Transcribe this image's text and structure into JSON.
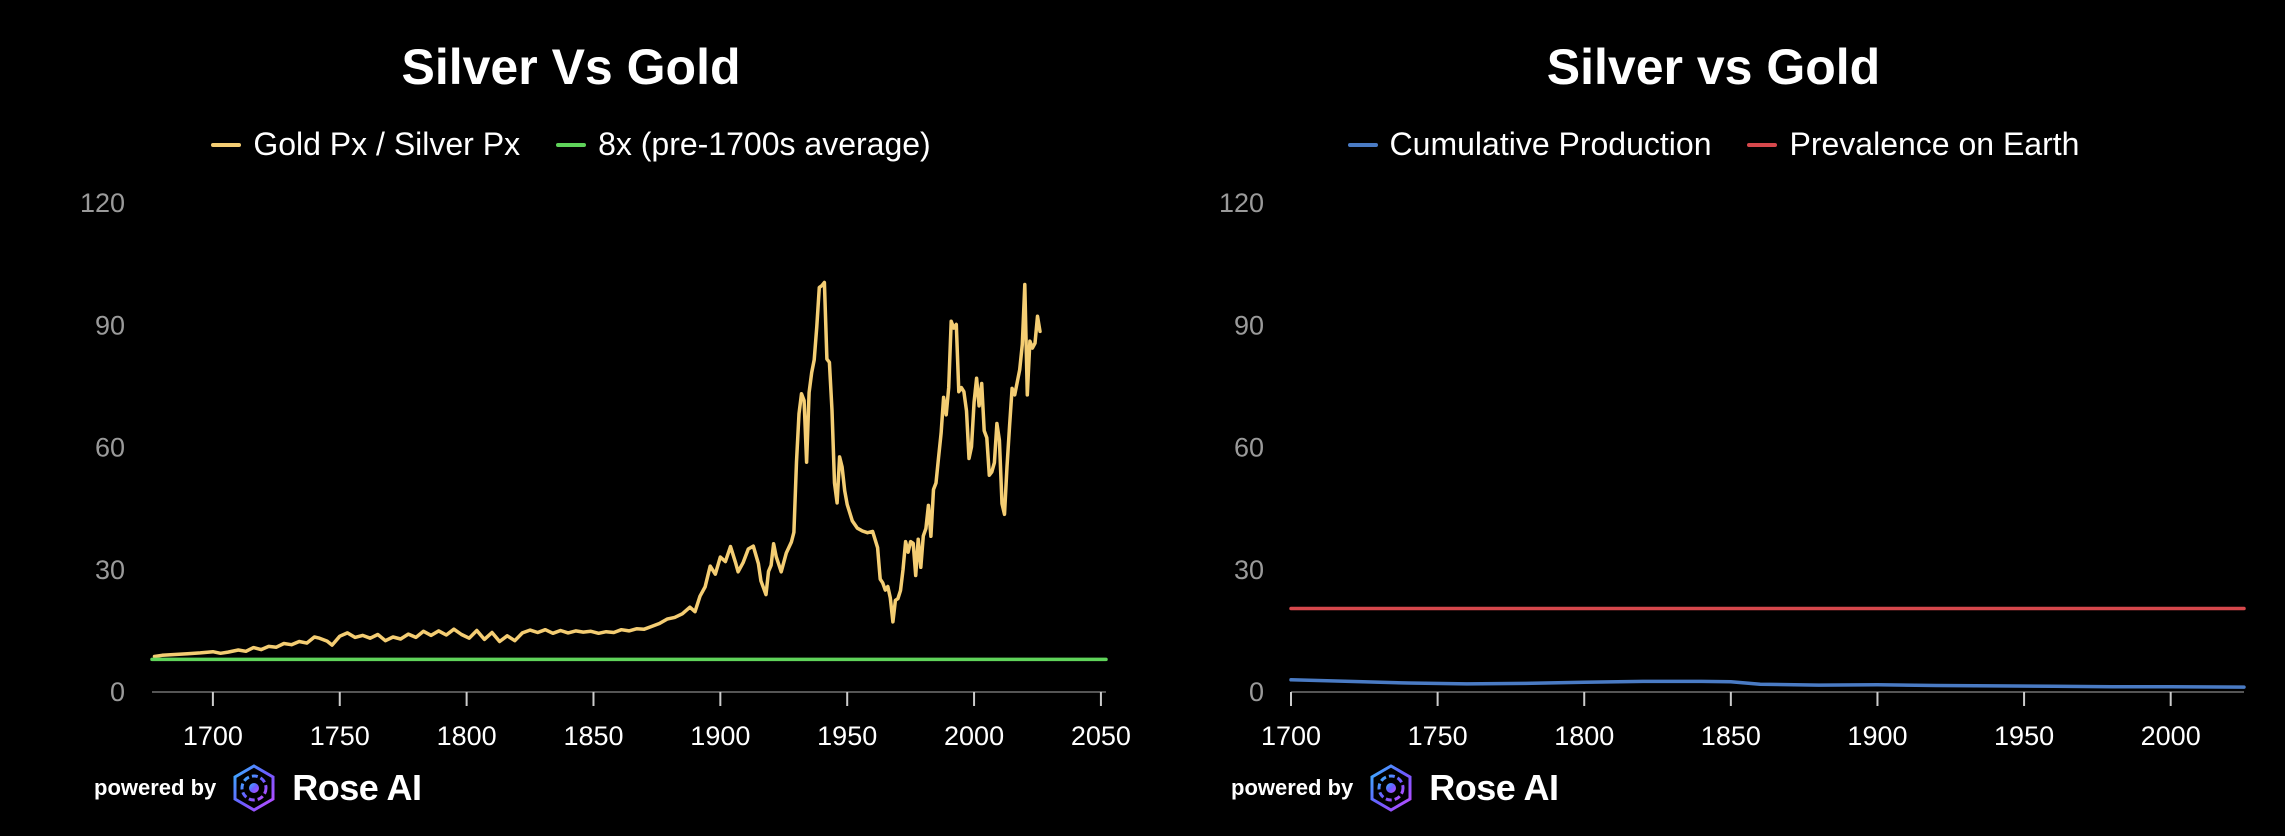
{
  "colors": {
    "background": "#000000",
    "gold": "#f4cd73",
    "green": "#5fd35a",
    "blue": "#4a7bc4",
    "red": "#d6484c",
    "axis_text": "#9a9a9a",
    "x_text": "#ffffff"
  },
  "branding": {
    "powered_by": "powered by",
    "brand": "Rose AI"
  },
  "chart_data": [
    {
      "type": "line",
      "title": "Silver Vs Gold",
      "xlim": [
        1676,
        2052
      ],
      "ylim": [
        0,
        120
      ],
      "x_ticks": [
        1700,
        1750,
        1800,
        1850,
        1900,
        1950,
        2000,
        2050
      ],
      "y_ticks": [
        0,
        30,
        60,
        90,
        120
      ],
      "legend_position": "top-center",
      "grid": false,
      "series": [
        {
          "name": "Gold Px / Silver Px",
          "color": "#f4cd73",
          "points": [
            [
              1677,
              8.7
            ],
            [
              1680,
              9.0
            ],
            [
              1685,
              9.2
            ],
            [
              1690,
              9.4
            ],
            [
              1695,
              9.6
            ],
            [
              1700,
              9.9
            ],
            [
              1703,
              9.5
            ],
            [
              1706,
              9.8
            ],
            [
              1710,
              10.3
            ],
            [
              1713,
              10.0
            ],
            [
              1716,
              10.9
            ],
            [
              1719,
              10.4
            ],
            [
              1722,
              11.2
            ],
            [
              1725,
              11.0
            ],
            [
              1728,
              11.9
            ],
            [
              1731,
              11.6
            ],
            [
              1734,
              12.4
            ],
            [
              1737,
              12.0
            ],
            [
              1740,
              13.5
            ],
            [
              1742,
              13.2
            ],
            [
              1745,
              12.5
            ],
            [
              1747,
              11.5
            ],
            [
              1750,
              13.7
            ],
            [
              1753,
              14.5
            ],
            [
              1756,
              13.4
            ],
            [
              1759,
              13.9
            ],
            [
              1762,
              13.2
            ],
            [
              1765,
              14.1
            ],
            [
              1768,
              12.6
            ],
            [
              1771,
              13.5
            ],
            [
              1774,
              13.0
            ],
            [
              1777,
              14.2
            ],
            [
              1780,
              13.4
            ],
            [
              1783,
              14.9
            ],
            [
              1786,
              13.9
            ],
            [
              1789,
              15.0
            ],
            [
              1792,
              14.0
            ],
            [
              1795,
              15.4
            ],
            [
              1798,
              14.1
            ],
            [
              1801,
              13.2
            ],
            [
              1804,
              15.1
            ],
            [
              1807,
              12.9
            ],
            [
              1810,
              14.6
            ],
            [
              1813,
              12.4
            ],
            [
              1816,
              13.8
            ],
            [
              1819,
              12.6
            ],
            [
              1822,
              14.5
            ],
            [
              1825,
              15.2
            ],
            [
              1828,
              14.6
            ],
            [
              1831,
              15.3
            ],
            [
              1834,
              14.4
            ],
            [
              1837,
              15.1
            ],
            [
              1840,
              14.5
            ],
            [
              1843,
              15.0
            ],
            [
              1846,
              14.7
            ],
            [
              1849,
              14.9
            ],
            [
              1852,
              14.4
            ],
            [
              1855,
              14.8
            ],
            [
              1858,
              14.6
            ],
            [
              1861,
              15.3
            ],
            [
              1864,
              15.0
            ],
            [
              1867,
              15.5
            ],
            [
              1870,
              15.4
            ],
            [
              1873,
              16.1
            ],
            [
              1876,
              16.8
            ],
            [
              1879,
              17.9
            ],
            [
              1882,
              18.3
            ],
            [
              1885,
              19.2
            ],
            [
              1888,
              20.8
            ],
            [
              1890,
              19.7
            ],
            [
              1892,
              23.5
            ],
            [
              1894,
              25.8
            ],
            [
              1896,
              30.9
            ],
            [
              1898,
              28.9
            ],
            [
              1900,
              33.1
            ],
            [
              1902,
              32.0
            ],
            [
              1904,
              35.7
            ],
            [
              1906,
              31.7
            ],
            [
              1907,
              29.5
            ],
            [
              1909,
              31.8
            ],
            [
              1911,
              35.1
            ],
            [
              1913,
              35.8
            ],
            [
              1915,
              31.5
            ],
            [
              1916,
              27.3
            ],
            [
              1918,
              23.9
            ],
            [
              1919,
              29.6
            ],
            [
              1920,
              31.1
            ],
            [
              1921,
              36.4
            ],
            [
              1922,
              33.2
            ],
            [
              1924,
              29.5
            ],
            [
              1926,
              34.1
            ],
            [
              1928,
              36.8
            ],
            [
              1929,
              39.2
            ],
            [
              1930,
              56.5
            ],
            [
              1931,
              68.3
            ],
            [
              1932,
              73.2
            ],
            [
              1933,
              71.5
            ],
            [
              1934,
              56.4
            ],
            [
              1935,
              73.5
            ],
            [
              1936,
              78.4
            ],
            [
              1937,
              81.5
            ],
            [
              1938,
              89.7
            ],
            [
              1939,
              99.3
            ],
            [
              1940,
              99.7
            ],
            [
              1941,
              100.5
            ],
            [
              1942,
              81.7
            ],
            [
              1943,
              80.9
            ],
            [
              1944,
              69.1
            ],
            [
              1945,
              51.3
            ],
            [
              1946,
              46.4
            ],
            [
              1947,
              57.7
            ],
            [
              1948,
              55.2
            ],
            [
              1949,
              49.4
            ],
            [
              1950,
              46.0
            ],
            [
              1952,
              42.0
            ],
            [
              1954,
              40.2
            ],
            [
              1956,
              39.5
            ],
            [
              1958,
              39.1
            ],
            [
              1960,
              39.4
            ],
            [
              1962,
              35.4
            ],
            [
              1963,
              27.7
            ],
            [
              1964,
              26.8
            ],
            [
              1965,
              25.0
            ],
            [
              1966,
              25.9
            ],
            [
              1967,
              23.1
            ],
            [
              1968,
              17.2
            ],
            [
              1969,
              22.5
            ],
            [
              1970,
              22.9
            ],
            [
              1971,
              24.9
            ],
            [
              1972,
              30.0
            ],
            [
              1973,
              36.9
            ],
            [
              1974,
              34.3
            ],
            [
              1975,
              36.9
            ],
            [
              1976,
              36.5
            ],
            [
              1977,
              28.6
            ],
            [
              1978,
              37.5
            ],
            [
              1979,
              30.6
            ],
            [
              1980,
              38.3
            ],
            [
              1981,
              40.1
            ],
            [
              1982,
              45.8
            ],
            [
              1983,
              38.2
            ],
            [
              1984,
              49.7
            ],
            [
              1985,
              51.3
            ],
            [
              1986,
              57.4
            ],
            [
              1987,
              63.5
            ],
            [
              1988,
              72.3
            ],
            [
              1989,
              68.0
            ],
            [
              1990,
              74.7
            ],
            [
              1991,
              91.0
            ],
            [
              1992,
              89.3
            ],
            [
              1993,
              90.2
            ],
            [
              1994,
              73.7
            ],
            [
              1995,
              74.7
            ],
            [
              1996,
              73.7
            ],
            [
              1997,
              69.0
            ],
            [
              1998,
              57.3
            ],
            [
              1999,
              60.2
            ],
            [
              2000,
              71.2
            ],
            [
              2001,
              77.0
            ],
            [
              2002,
              70.2
            ],
            [
              2003,
              75.7
            ],
            [
              2004,
              64.1
            ],
            [
              2005,
              62.4
            ],
            [
              2006,
              53.2
            ],
            [
              2007,
              54.0
            ],
            [
              2008,
              56.3
            ],
            [
              2009,
              65.9
            ],
            [
              2010,
              61.8
            ],
            [
              2011,
              46.2
            ],
            [
              2012,
              43.6
            ],
            [
              2013,
              55.3
            ],
            [
              2014,
              65.4
            ],
            [
              2015,
              74.5
            ],
            [
              2016,
              72.9
            ],
            [
              2017,
              76.0
            ],
            [
              2018,
              79.1
            ],
            [
              2019,
              85.3
            ],
            [
              2020,
              100.0
            ],
            [
              2021,
              72.9
            ],
            [
              2022,
              86.1
            ],
            [
              2023,
              84.4
            ],
            [
              2024,
              85.6
            ],
            [
              2025,
              92.2
            ],
            [
              2026,
              88.5
            ]
          ]
        },
        {
          "name": "8x (pre-1700s average)",
          "color": "#5fd35a",
          "points": [
            [
              1676,
              8
            ],
            [
              2052,
              8
            ]
          ]
        }
      ]
    },
    {
      "type": "line",
      "title": "Silver vs Gold",
      "xlim": [
        1700,
        2025
      ],
      "ylim": [
        0,
        120
      ],
      "x_ticks": [
        1700,
        1750,
        1800,
        1850,
        1900,
        1950,
        2000
      ],
      "y_ticks": [
        0,
        30,
        60,
        90,
        120
      ],
      "legend_position": "top-center",
      "grid": false,
      "series": [
        {
          "name": "Cumulative Production",
          "color": "#4a7bc4",
          "points": [
            [
              1700,
              3.0
            ],
            [
              1720,
              2.6
            ],
            [
              1740,
              2.2
            ],
            [
              1760,
              2.0
            ],
            [
              1780,
              2.1
            ],
            [
              1800,
              2.4
            ],
            [
              1820,
              2.6
            ],
            [
              1840,
              2.6
            ],
            [
              1850,
              2.5
            ],
            [
              1860,
              1.9
            ],
            [
              1880,
              1.7
            ],
            [
              1900,
              1.8
            ],
            [
              1920,
              1.6
            ],
            [
              1940,
              1.5
            ],
            [
              1960,
              1.4
            ],
            [
              1980,
              1.3
            ],
            [
              2000,
              1.3
            ],
            [
              2025,
              1.2
            ]
          ]
        },
        {
          "name": "Prevalence on Earth",
          "color": "#d6484c",
          "points": [
            [
              1700,
              20.5
            ],
            [
              2025,
              20.5
            ]
          ]
        }
      ]
    }
  ]
}
